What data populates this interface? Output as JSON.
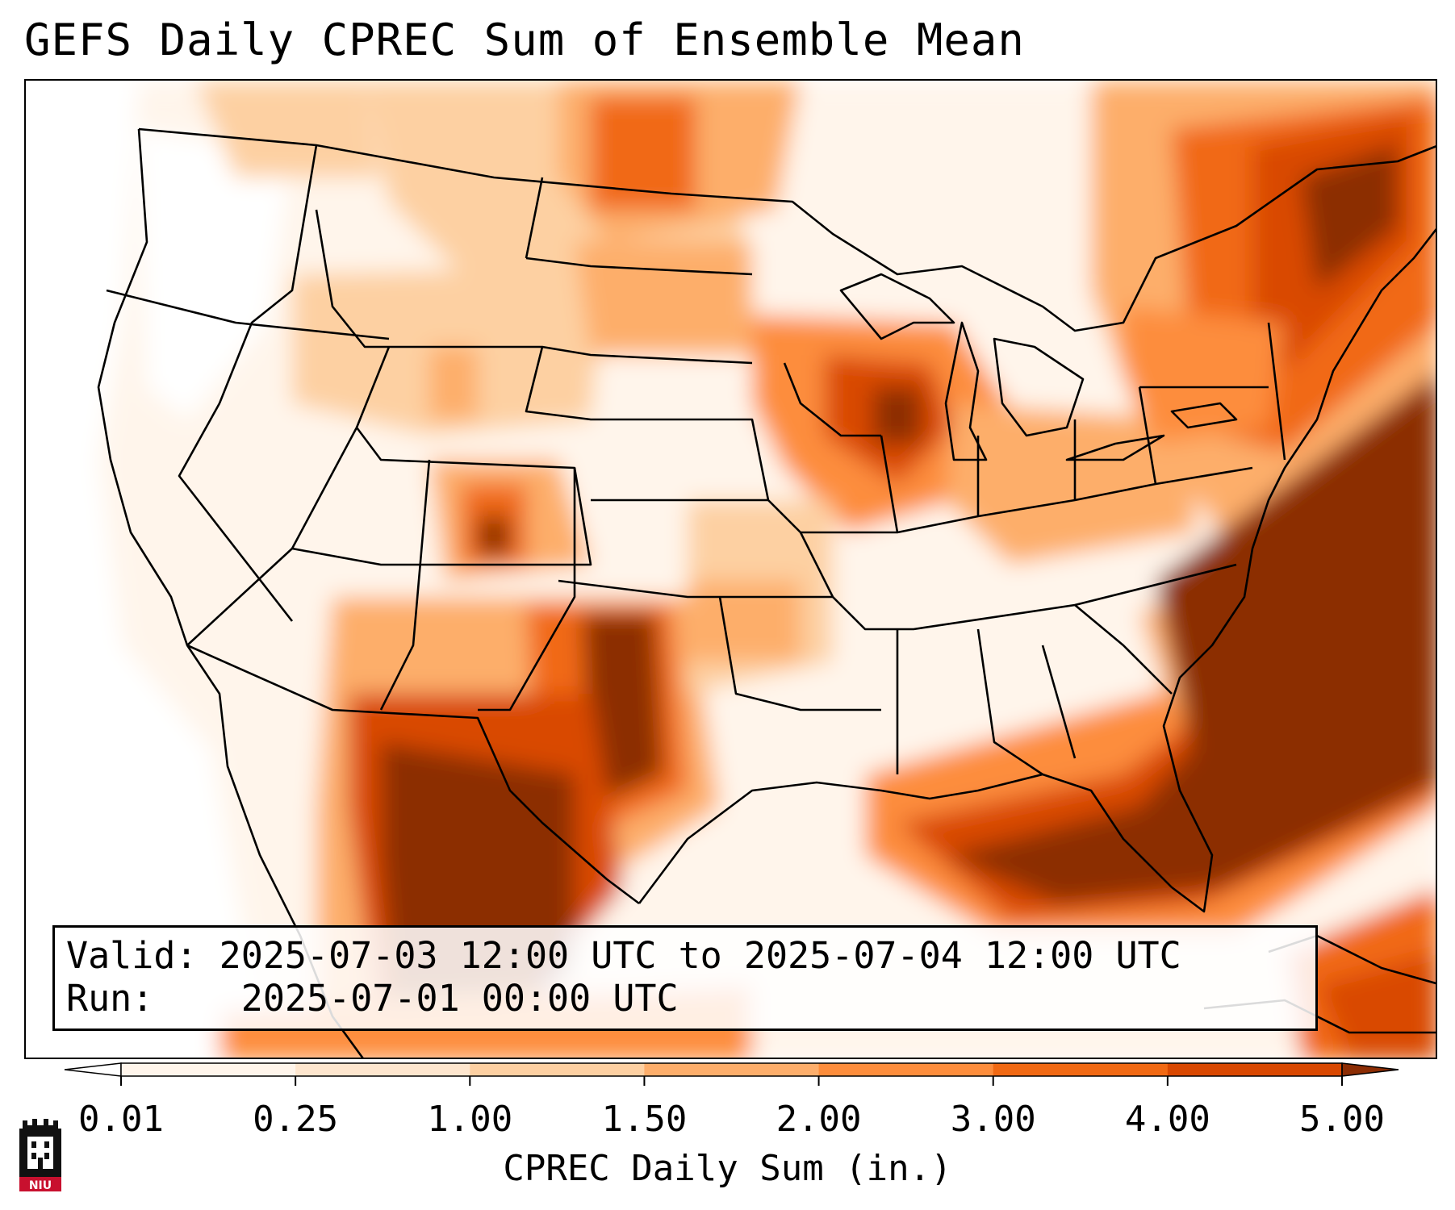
{
  "title": "GEFS Daily CPREC Sum of Ensemble Mean",
  "info": {
    "valid_label": "Valid:",
    "valid_value": "2025-07-03 12:00 UTC to 2025-07-04 12:00 UTC",
    "run_label": "Run:",
    "run_value": "2025-07-01 00:00 UTC"
  },
  "colorbar": {
    "label": "CPREC Daily Sum (in.)",
    "ticks": [
      "0.01",
      "0.25",
      "1.00",
      "1.50",
      "2.00",
      "3.00",
      "4.00",
      "5.00"
    ],
    "colors": [
      "#fff5eb",
      "#fee6ce",
      "#fdd0a2",
      "#fdae6b",
      "#fd8d3c",
      "#f16913",
      "#d94801",
      "#8c2d04"
    ],
    "extend": "both"
  },
  "map": {
    "region": "Continental United States",
    "colors": {
      "background": "#ffffff",
      "light": "#fff5eb",
      "low": "#fee6ce",
      "lowmid": "#fdd0a2",
      "mid": "#fdae6b",
      "high": "#fd8d3c",
      "higher": "#f16913",
      "very_high": "#d94801",
      "max": "#8c2d04",
      "borders": "#000000"
    }
  },
  "logo": {
    "text": "NIU",
    "color": "#c8102e"
  }
}
